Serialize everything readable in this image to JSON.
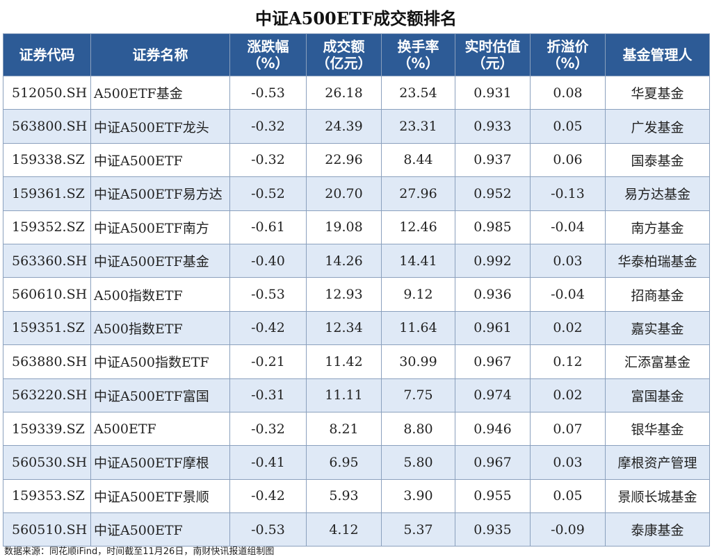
{
  "title": "中证A500ETF成交额排名",
  "columns": [
    {
      "label": "证券代码",
      "unit": ""
    },
    {
      "label": "证券名称",
      "unit": ""
    },
    {
      "label": "涨跌幅",
      "unit": "（%）"
    },
    {
      "label": "成交额",
      "unit": "（亿元）"
    },
    {
      "label": "换手率",
      "unit": "（%）"
    },
    {
      "label": "实时估值",
      "unit": "（元）"
    },
    {
      "label": "折溢价",
      "unit": "（%）"
    },
    {
      "label": "基金管理人",
      "unit": ""
    }
  ],
  "rows": [
    [
      "512050.SH",
      "A500ETF基金",
      "-0.53",
      "26.18",
      "23.54",
      "0.931",
      "0.08",
      "华夏基金"
    ],
    [
      "563800.SH",
      "中证A500ETF龙头",
      "-0.32",
      "24.39",
      "23.31",
      "0.933",
      "0.05",
      "广发基金"
    ],
    [
      "159338.SZ",
      "中证A500ETF",
      "-0.32",
      "22.96",
      "8.44",
      "0.937",
      "0.06",
      "国泰基金"
    ],
    [
      "159361.SZ",
      "中证A500ETF易方达",
      "-0.52",
      "20.70",
      "27.96",
      "0.952",
      "-0.13",
      "易方达基金"
    ],
    [
      "159352.SZ",
      "中证A500ETF南方",
      "-0.61",
      "19.08",
      "12.46",
      "0.985",
      "-0.04",
      "南方基金"
    ],
    [
      "563360.SH",
      "中证A500ETF基金",
      "-0.40",
      "14.26",
      "14.41",
      "0.992",
      "0.03",
      "华泰柏瑞基金"
    ],
    [
      "560610.SH",
      "A500指数ETF",
      "-0.53",
      "12.93",
      "9.12",
      "0.936",
      "-0.04",
      "招商基金"
    ],
    [
      "159351.SZ",
      "A500指数ETF",
      "-0.42",
      "12.34",
      "11.64",
      "0.961",
      "0.02",
      "嘉实基金"
    ],
    [
      "563880.SH",
      "中证A500指数ETF",
      "-0.21",
      "11.42",
      "30.99",
      "0.967",
      "0.12",
      "汇添富基金"
    ],
    [
      "563220.SH",
      "中证A500ETF富国",
      "-0.31",
      "11.11",
      "7.75",
      "0.974",
      "0.02",
      "富国基金"
    ],
    [
      "159339.SZ",
      "A500ETF",
      "-0.32",
      "8.21",
      "8.80",
      "0.946",
      "0.07",
      "银华基金"
    ],
    [
      "560530.SH",
      "中证A500ETF摩根",
      "-0.41",
      "6.95",
      "5.80",
      "0.967",
      "0.03",
      "摩根资产管理"
    ],
    [
      "159353.SZ",
      "中证A500ETF景顺",
      "-0.42",
      "5.93",
      "3.90",
      "0.955",
      "0.05",
      "景顺长城基金"
    ],
    [
      "560510.SH",
      "中证A500ETF",
      "-0.53",
      "4.12",
      "5.37",
      "0.935",
      "-0.09",
      "泰康基金"
    ]
  ],
  "source": "数据来源：同花顺iFind，时间截至11月26日，南财快讯报道组制图"
}
